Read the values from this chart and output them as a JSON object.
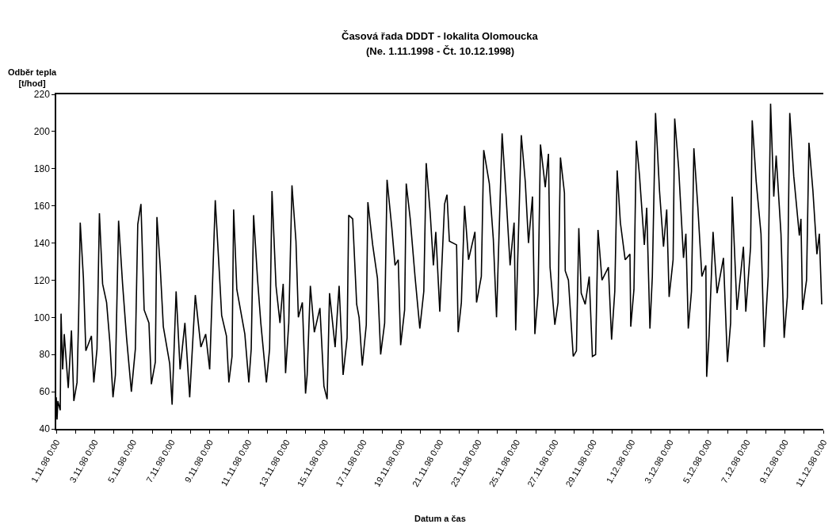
{
  "chart_data": {
    "type": "line",
    "title": "Časová řada DDDT - lokalita Olomoucka",
    "subtitle": "(Ne. 1.11.1998 - Čt. 10.12.1998)",
    "xlabel": "Datum a čas",
    "ylabel": "Odběr tepla\n[t/hod]",
    "x": [
      "1998-11-01T00:00",
      "1998-11-01T01:00",
      "1998-11-01T02:00",
      "1998-11-01T05:00",
      "1998-11-01T06:00",
      "1998-11-01T08:00",
      "1998-11-01T10:00",
      "1998-11-01T15:00",
      "1998-11-01T19:00",
      "1998-11-01T22:00",
      "1998-11-02T02:00",
      "1998-11-02T04:00",
      "1998-11-02T06:00",
      "1998-11-02T10:00",
      "1998-11-02T13:00",
      "1998-11-02T20:00",
      "1998-11-02T23:00",
      "1998-11-03T03:00",
      "1998-11-03T06:00",
      "1998-11-03T10:00",
      "1998-11-03T15:00",
      "1998-11-03T19:00",
      "1998-11-03T23:00",
      "1998-11-04T02:00",
      "1998-11-04T06:00",
      "1998-11-04T11:00",
      "1998-11-04T16:00",
      "1998-11-04T22:00",
      "1998-11-05T03:00",
      "1998-11-05T06:00",
      "1998-11-05T10:00",
      "1998-11-05T14:00",
      "1998-11-05T20:00",
      "1998-11-05T23:00",
      "1998-11-06T04:00",
      "1998-11-06T06:00",
      "1998-11-06T10:00",
      "1998-11-06T14:00",
      "1998-11-06T22:00",
      "1998-11-07T01:00",
      "1998-11-07T06:00",
      "1998-11-07T11:00",
      "1998-11-07T17:00",
      "1998-11-07T23:00",
      "1998-11-08T06:00",
      "1998-11-08T13:00",
      "1998-11-08T19:00",
      "1998-11-09T00:00",
      "1998-11-09T07:00",
      "1998-11-09T12:00",
      "1998-11-09T15:00",
      "1998-11-09T21:00",
      "1998-11-10T00:00",
      "1998-11-10T04:00",
      "1998-11-10T06:00",
      "1998-11-10T10:00",
      "1998-11-10T20:00",
      "1998-11-11T01:00",
      "1998-11-11T04:00",
      "1998-11-11T07:00",
      "1998-11-11T12:00",
      "1998-11-11T16:00",
      "1998-11-11T23:00",
      "1998-11-12T03:00",
      "1998-11-12T06:00",
      "1998-11-12T11:00",
      "1998-11-12T16:00",
      "1998-11-12T20:00",
      "1998-11-12T23:00",
      "1998-11-13T03:00",
      "1998-11-13T07:00",
      "1998-11-13T12:00",
      "1998-11-13T15:00",
      "1998-11-13T20:00",
      "1998-11-14T00:00",
      "1998-11-14T02:00",
      "1998-11-14T06:00",
      "1998-11-14T11:00",
      "1998-11-14T18:00",
      "1998-11-14T23:00",
      "1998-11-15T03:00",
      "1998-11-15T06:00",
      "1998-11-15T13:00",
      "1998-11-15T18:00",
      "1998-11-15T23:00",
      "1998-11-16T04:00",
      "1998-11-16T06:00",
      "1998-11-16T11:00",
      "1998-11-16T16:00",
      "1998-11-16T19:00",
      "1998-11-16T23:00",
      "1998-11-17T04:00",
      "1998-11-17T06:00",
      "1998-11-17T12:00",
      "1998-11-17T18:00",
      "1998-11-17T22:00",
      "1998-11-18T03:00",
      "1998-11-18T06:00",
      "1998-11-18T12:00",
      "1998-11-18T16:00",
      "1998-11-18T20:00",
      "1998-11-18T23:00",
      "1998-11-19T04:00",
      "1998-11-19T06:00",
      "1998-11-19T11:00",
      "1998-11-19T17:00",
      "1998-11-19T23:00",
      "1998-11-20T04:00",
      "1998-11-20T07:00",
      "1998-11-20T12:00",
      "1998-11-20T16:00",
      "1998-11-20T19:00",
      "1998-11-21T00:00",
      "1998-11-21T06:00",
      "1998-11-21T09:00",
      "1998-11-21T12:00",
      "1998-11-21T21:00",
      "1998-11-21T23:00",
      "1998-11-22T03:00",
      "1998-11-22T07:00",
      "1998-11-22T12:00",
      "1998-11-22T20:00",
      "1998-11-22T22:00",
      "1998-11-23T04:00",
      "1998-11-23T07:00",
      "1998-11-23T14:00",
      "1998-11-23T19:00",
      "1998-11-23T23:00",
      "1998-11-24T06:00",
      "1998-11-24T11:00",
      "1998-11-24T16:00",
      "1998-11-24T21:00",
      "1998-11-24T23:00",
      "1998-11-25T06:00",
      "1998-11-25T11:00",
      "1998-11-25T15:00",
      "1998-11-25T20:00",
      "1998-11-25T23:00",
      "1998-11-26T03:00",
      "1998-11-26T06:00",
      "1998-11-26T12:00",
      "1998-11-26T16:00",
      "1998-11-26T18:00",
      "1998-11-27T00:00",
      "1998-11-27T04:00",
      "1998-11-27T07:00",
      "1998-11-27T12:00",
      "1998-11-27T13:00",
      "1998-11-27T17:00",
      "1998-11-27T23:00",
      "1998-11-28T03:00",
      "1998-11-28T06:00",
      "1998-11-28T09:00",
      "1998-11-28T14:00",
      "1998-11-28T19:00",
      "1998-11-28T23:00",
      "1998-11-29T03:00",
      "1998-11-29T06:00",
      "1998-11-29T11:00",
      "1998-11-29T19:00",
      "1998-11-29T23:00",
      "1998-11-30T03:00",
      "1998-11-30T06:00",
      "1998-11-30T10:00",
      "1998-11-30T16:00",
      "1998-11-30T22:00",
      "1998-11-30T23:00",
      "1998-12-01T03:00",
      "1998-12-01T06:00",
      "1998-12-01T10:00",
      "1998-12-01T16:00",
      "1998-12-01T19:00",
      "1998-12-01T23:00",
      "1998-12-02T02:00",
      "1998-12-02T06:00",
      "1998-12-02T11:00",
      "1998-12-02T16:00",
      "1998-12-02T20:00",
      "1998-12-02T23:00",
      "1998-12-03T04:00",
      "1998-12-03T06:00",
      "1998-12-03T11:00",
      "1998-12-03T17:00",
      "1998-12-03T20:00",
      "1998-12-03T23:00",
      "1998-12-04T03:00",
      "1998-12-04T06:00",
      "1998-12-04T11:00",
      "1998-12-04T16:00",
      "1998-12-04T21:00",
      "1998-12-04T22:00",
      "1998-12-05T01:00",
      "1998-12-05T06:00",
      "1998-12-05T11:00",
      "1998-12-05T19:00",
      "1998-12-06T00:00",
      "1998-12-06T04:00",
      "1998-12-06T06:00",
      "1998-12-06T12:00",
      "1998-12-06T20:00",
      "1998-12-06T23:00",
      "1998-12-07T05:00",
      "1998-12-07T07:00",
      "1998-12-07T12:00",
      "1998-12-07T18:00",
      "1998-12-07T22:00",
      "1998-12-08T03:00",
      "1998-12-08T06:00",
      "1998-12-08T10:00",
      "1998-12-08T13:00",
      "1998-12-08T19:00",
      "1998-12-08T23:00",
      "1998-12-09T03:00",
      "1998-12-09T06:00",
      "1998-12-09T11:00",
      "1998-12-09T18:00",
      "1998-12-09T20:00",
      "1998-12-09T22:00",
      "1998-12-10T03:00",
      "1998-12-10T06:00",
      "1998-12-10T11:00",
      "1998-12-10T16:00",
      "1998-12-10T19:00",
      "1998-12-10T22:00"
    ],
    "series": [
      {
        "color": "#000000",
        "values": [
          57,
          45,
          55,
          50,
          102,
          72,
          91,
          62,
          93,
          55,
          65,
          100,
          151,
          121,
          82,
          90,
          65,
          83,
          156,
          118,
          108,
          87,
          57,
          69,
          152,
          118,
          89,
          60,
          83,
          150,
          161,
          104,
          97,
          64,
          76,
          154,
          128,
          95,
          75,
          53,
          114,
          72,
          97,
          57,
          112,
          84,
          91,
          72,
          163,
          125,
          101,
          90,
          65,
          79,
          158,
          115,
          91,
          65,
          83,
          155,
          120,
          97,
          65,
          83,
          168,
          117,
          97,
          118,
          70,
          97,
          171,
          141,
          100,
          108,
          59,
          69,
          117,
          92,
          105,
          63,
          56,
          113,
          84,
          117,
          69,
          89,
          155,
          153,
          107,
          100,
          74,
          96,
          162,
          139,
          121,
          80,
          97,
          174,
          148,
          128,
          131,
          85,
          104,
          172,
          153,
          122,
          94,
          114,
          183,
          156,
          128,
          146,
          103,
          161,
          166,
          141,
          139,
          92,
          108,
          160,
          131,
          146,
          108,
          122,
          190,
          172,
          142,
          100,
          199,
          165,
          128,
          151,
          93,
          198,
          173,
          140,
          165,
          91,
          113,
          193,
          170,
          188,
          127,
          96,
          108,
          186,
          167,
          125,
          120,
          79,
          82,
          148,
          113,
          107,
          122,
          79,
          80,
          147,
          120,
          127,
          88,
          114,
          179,
          151,
          131,
          134,
          95,
          115,
          195,
          176,
          139,
          159,
          94,
          122,
          210,
          168,
          138,
          158,
          111,
          131,
          207,
          180,
          132,
          145,
          94,
          114,
          191,
          159,
          122,
          128,
          68,
          90,
          146,
          113,
          132,
          76,
          97,
          165,
          104,
          138,
          103,
          138,
          206,
          173,
          145,
          84,
          122,
          215,
          165,
          187,
          145,
          89,
          111,
          210,
          176,
          144,
          153,
          104,
          120,
          194,
          168,
          134,
          145,
          107
        ]
      }
    ],
    "xlim": [
      "1998-11-01",
      "1998-12-11"
    ],
    "xticks": [
      {
        "value": "1998-11-01",
        "label": "1.11.98 0:00"
      },
      {
        "value": "1998-11-02",
        "label": null
      },
      {
        "value": "1998-11-03",
        "label": "3.11.98 0:00"
      },
      {
        "value": "1998-11-04",
        "label": null
      },
      {
        "value": "1998-11-05",
        "label": "5.11.98 0:00"
      },
      {
        "value": "1998-11-06",
        "label": null
      },
      {
        "value": "1998-11-07",
        "label": "7.11.98 0:00"
      },
      {
        "value": "1998-11-08",
        "label": null
      },
      {
        "value": "1998-11-09",
        "label": "9.11.98 0:00"
      },
      {
        "value": "1998-11-10",
        "label": null
      },
      {
        "value": "1998-11-11",
        "label": "11.11.98 0:00"
      },
      {
        "value": "1998-11-12",
        "label": null
      },
      {
        "value": "1998-11-13",
        "label": "13.11.98 0:00"
      },
      {
        "value": "1998-11-14",
        "label": null
      },
      {
        "value": "1998-11-15",
        "label": "15.11.98 0:00"
      },
      {
        "value": "1998-11-16",
        "label": null
      },
      {
        "value": "1998-11-17",
        "label": "17.11.98 0:00"
      },
      {
        "value": "1998-11-18",
        "label": null
      },
      {
        "value": "1998-11-19",
        "label": "19.11.98 0:00"
      },
      {
        "value": "1998-11-20",
        "label": null
      },
      {
        "value": "1998-11-21",
        "label": "21.11.98 0:00"
      },
      {
        "value": "1998-11-22",
        "label": null
      },
      {
        "value": "1998-11-23",
        "label": "23.11.98 0:00"
      },
      {
        "value": "1998-11-24",
        "label": null
      },
      {
        "value": "1998-11-25",
        "label": "25.11.98 0:00"
      },
      {
        "value": "1998-11-26",
        "label": null
      },
      {
        "value": "1998-11-27",
        "label": "27.11.98 0:00"
      },
      {
        "value": "1998-11-28",
        "label": null
      },
      {
        "value": "1998-11-29",
        "label": "29.11.98 0:00"
      },
      {
        "value": "1998-11-30",
        "label": null
      },
      {
        "value": "1998-12-01",
        "label": "1.12.98 0:00"
      },
      {
        "value": "1998-12-02",
        "label": null
      },
      {
        "value": "1998-12-03",
        "label": "3.12.98 0:00"
      },
      {
        "value": "1998-12-04",
        "label": null
      },
      {
        "value": "1998-12-05",
        "label": "5.12.98 0:00"
      },
      {
        "value": "1998-12-06",
        "label": null
      },
      {
        "value": "1998-12-07",
        "label": "7.12.98 0:00"
      },
      {
        "value": "1998-12-08",
        "label": null
      },
      {
        "value": "1998-12-09",
        "label": "9.12.98 0:00"
      },
      {
        "value": "1998-12-10",
        "label": null
      },
      {
        "value": "1998-12-11",
        "label": "11.12.98 0:00"
      }
    ],
    "ylim": [
      40,
      220
    ],
    "yticks": [
      40,
      60,
      80,
      100,
      120,
      140,
      160,
      180,
      200,
      220
    ],
    "marker": "none",
    "line_style": "solid"
  }
}
